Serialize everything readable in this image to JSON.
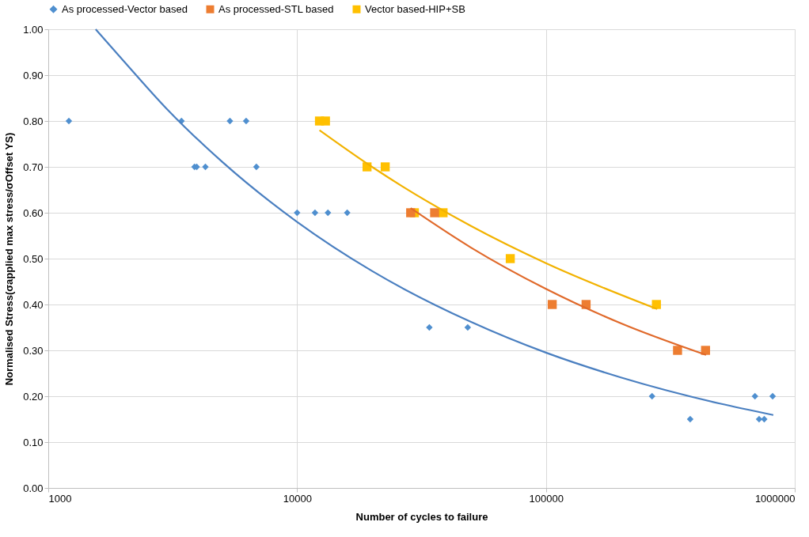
{
  "chart_data": {
    "type": "scatter",
    "xlabel": "Number of cycles to failure",
    "ylabel": "Normalised Stress(σapplied max stress/σOffset YS)",
    "log": "x",
    "xlim": [
      1000,
      1000000
    ],
    "xticks": [
      1000,
      10000,
      100000,
      1000000
    ],
    "ylim": [
      0,
      1
    ],
    "yticks": [
      {
        "value": 0,
        "label": "0.00"
      },
      {
        "value": 0.1,
        "label": "0.10"
      },
      {
        "value": 0.2,
        "label": "0.20"
      },
      {
        "value": 0.3,
        "label": "0.30"
      },
      {
        "value": 0.4,
        "label": "0.40"
      },
      {
        "value": 0.5,
        "label": "0.50"
      },
      {
        "value": 0.6,
        "label": "0.60"
      },
      {
        "value": 0.7,
        "label": "0.70"
      },
      {
        "value": 0.8,
        "label": "0.80"
      },
      {
        "value": 0.9,
        "label": "0.90"
      },
      {
        "value": 1,
        "label": "1.00"
      }
    ],
    "grid": true,
    "legend": "top",
    "series": [
      {
        "name": "As processed-Vector based",
        "marker": "diamond",
        "color": "#4f8fcf",
        "x": [
          1210,
          3430,
          5370,
          6240,
          3870,
          3950,
          4280,
          6860,
          10000,
          11800,
          13300,
          15900,
          34000,
          48500,
          267000,
          692000,
          815000,
          380000,
          719000,
          754000
        ],
        "values": [
          0.8,
          0.8,
          0.8,
          0.8,
          0.7,
          0.7,
          0.7,
          0.7,
          0.6,
          0.6,
          0.6,
          0.6,
          0.35,
          0.35,
          0.2,
          0.2,
          0.2,
          0.15,
          0.15,
          0.15
        ]
      },
      {
        "name": "As processed-STL based",
        "marker": "square",
        "color": "#ed7d31",
        "x": [
          28600,
          35700,
          106000,
          145000,
          338000,
          438000
        ],
        "values": [
          0.6,
          0.6,
          0.4,
          0.4,
          0.3,
          0.3
        ]
      },
      {
        "name": "Vector based-HIP+SB",
        "marker": "square",
        "color": "#ffc000",
        "x": [
          12300,
          13000,
          19100,
          22600,
          29600,
          38600,
          71900,
          278000
        ],
        "values": [
          0.8,
          0.8,
          0.7,
          0.7,
          0.6,
          0.6,
          0.5,
          0.4
        ]
      },
      {
        "type": "line",
        "color": "#4a7fc0",
        "x": [
          1550,
          2000,
          3000,
          5000,
          10000,
          20000,
          50000,
          100000,
          200000,
          500000,
          820000
        ],
        "values": [
          1.0,
          0.932,
          0.826,
          0.711,
          0.58,
          0.473,
          0.362,
          0.295,
          0.241,
          0.184,
          0.159
        ]
      },
      {
        "type": "line",
        "color": "#e0692a",
        "x": [
          28600,
          50000,
          100000,
          200000,
          440000
        ],
        "values": [
          0.61,
          0.524,
          0.434,
          0.359,
          0.29
        ]
      },
      {
        "type": "line",
        "color": "#f2b200",
        "x": [
          12300,
          20000,
          50000,
          100000,
          280000
        ],
        "values": [
          0.78,
          0.7,
          0.571,
          0.49,
          0.39
        ]
      }
    ]
  }
}
